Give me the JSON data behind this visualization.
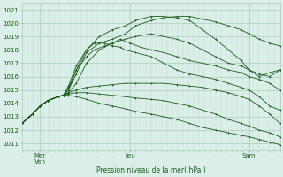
{
  "xlabel": "Pression niveau de la mer( hPa )",
  "ylim": [
    1010.5,
    1021.5
  ],
  "yticks": [
    1011,
    1012,
    1013,
    1014,
    1015,
    1016,
    1017,
    1018,
    1019,
    1020,
    1021
  ],
  "bg_color": "#d9efe8",
  "grid_major_color": "#aaccbb",
  "grid_minor_color": "#c4ddd5",
  "line_color": "#1a5c1a",
  "xlim": [
    0,
    1
  ],
  "xtick_positions": [
    0.07,
    0.42,
    0.88
  ],
  "xtick_labels": [
    "Mer\nVen",
    "Jeu",
    "Sam"
  ],
  "lines": [
    {
      "x": [
        0.0,
        0.04,
        0.07,
        0.1,
        0.14,
        0.16,
        0.18,
        0.21,
        0.25,
        0.3,
        0.35,
        0.4,
        0.44,
        0.5,
        0.55,
        0.6,
        0.65,
        0.7,
        0.75,
        0.8,
        0.85,
        0.88,
        0.92,
        0.96,
        1.0
      ],
      "y": [
        1012.5,
        1013.2,
        1013.8,
        1014.2,
        1014.5,
        1014.6,
        1015.0,
        1016.2,
        1017.8,
        1018.5,
        1018.8,
        1019.2,
        1019.8,
        1020.2,
        1020.4,
        1020.5,
        1020.5,
        1020.3,
        1020.1,
        1019.8,
        1019.5,
        1019.2,
        1018.8,
        1018.5,
        1018.3
      ]
    },
    {
      "x": [
        0.0,
        0.04,
        0.07,
        0.1,
        0.14,
        0.16,
        0.18,
        0.21,
        0.25,
        0.3,
        0.35,
        0.4,
        0.44,
        0.5,
        0.55,
        0.6,
        0.65,
        0.7,
        0.75,
        0.8,
        0.85,
        0.88,
        0.92,
        0.96,
        1.0
      ],
      "y": [
        1012.5,
        1013.2,
        1013.8,
        1014.2,
        1014.5,
        1014.6,
        1015.0,
        1016.5,
        1018.0,
        1019.0,
        1019.5,
        1019.8,
        1020.2,
        1020.5,
        1020.5,
        1020.4,
        1020.2,
        1019.5,
        1018.8,
        1018.0,
        1017.2,
        1016.5,
        1016.0,
        1016.3,
        1016.5
      ]
    },
    {
      "x": [
        0.0,
        0.04,
        0.07,
        0.1,
        0.14,
        0.16,
        0.18,
        0.21,
        0.25,
        0.3,
        0.35,
        0.4,
        0.44,
        0.5,
        0.55,
        0.6,
        0.65,
        0.7,
        0.75,
        0.8,
        0.85,
        0.88,
        0.92,
        0.96,
        1.0
      ],
      "y": [
        1012.5,
        1013.2,
        1013.8,
        1014.2,
        1014.5,
        1014.6,
        1014.8,
        1015.5,
        1017.0,
        1018.0,
        1018.5,
        1018.8,
        1019.0,
        1019.2,
        1019.0,
        1018.8,
        1018.5,
        1018.0,
        1017.5,
        1017.0,
        1016.8,
        1016.5,
        1016.2,
        1016.0,
        1016.5
      ]
    },
    {
      "x": [
        0.0,
        0.04,
        0.07,
        0.1,
        0.14,
        0.16,
        0.18,
        0.21,
        0.25,
        0.28,
        0.32,
        0.35,
        0.38,
        0.42,
        0.46,
        0.5,
        0.55,
        0.6,
        0.65,
        0.7,
        0.75,
        0.8,
        0.85,
        0.88,
        0.92,
        0.96,
        1.0
      ],
      "y": [
        1012.5,
        1013.2,
        1013.8,
        1014.2,
        1014.5,
        1014.6,
        1015.2,
        1016.5,
        1017.5,
        1018.0,
        1018.3,
        1018.5,
        1018.8,
        1018.5,
        1018.2,
        1018.0,
        1017.8,
        1017.5,
        1017.2,
        1017.0,
        1016.8,
        1016.5,
        1016.3,
        1016.0,
        1015.8,
        1015.5,
        1015.0
      ]
    },
    {
      "x": [
        0.0,
        0.04,
        0.07,
        0.1,
        0.14,
        0.16,
        0.18,
        0.21,
        0.25,
        0.28,
        0.32,
        0.35,
        0.38,
        0.4,
        0.44,
        0.5,
        0.55,
        0.6,
        0.65,
        0.7,
        0.75,
        0.8,
        0.85,
        0.88,
        0.92,
        0.96,
        1.0
      ],
      "y": [
        1012.5,
        1013.2,
        1013.8,
        1014.2,
        1014.5,
        1014.6,
        1015.3,
        1016.8,
        1018.0,
        1018.5,
        1018.5,
        1018.3,
        1018.2,
        1018.0,
        1017.8,
        1017.5,
        1017.0,
        1016.5,
        1016.2,
        1016.0,
        1015.8,
        1015.5,
        1015.2,
        1015.0,
        1014.5,
        1013.8,
        1013.5
      ]
    },
    {
      "x": [
        0.0,
        0.04,
        0.07,
        0.1,
        0.14,
        0.16,
        0.18,
        0.21,
        0.25,
        0.3,
        0.35,
        0.4,
        0.44,
        0.5,
        0.55,
        0.6,
        0.65,
        0.7,
        0.75,
        0.8,
        0.85,
        0.88,
        0.92,
        0.96,
        1.0
      ],
      "y": [
        1012.5,
        1013.2,
        1013.8,
        1014.2,
        1014.5,
        1014.6,
        1014.8,
        1015.0,
        1015.2,
        1015.3,
        1015.4,
        1015.5,
        1015.5,
        1015.5,
        1015.5,
        1015.4,
        1015.3,
        1015.2,
        1015.0,
        1014.8,
        1014.5,
        1014.3,
        1013.8,
        1013.2,
        1012.5
      ]
    },
    {
      "x": [
        0.0,
        0.04,
        0.07,
        0.1,
        0.14,
        0.16,
        0.18,
        0.21,
        0.25,
        0.3,
        0.35,
        0.4,
        0.44,
        0.5,
        0.55,
        0.6,
        0.65,
        0.7,
        0.75,
        0.8,
        0.85,
        0.88,
        0.92,
        0.96,
        1.0
      ],
      "y": [
        1012.5,
        1013.2,
        1013.8,
        1014.2,
        1014.5,
        1014.6,
        1014.7,
        1014.8,
        1014.8,
        1014.7,
        1014.6,
        1014.5,
        1014.4,
        1014.3,
        1014.2,
        1014.0,
        1013.8,
        1013.5,
        1013.2,
        1012.8,
        1012.5,
        1012.3,
        1012.0,
        1011.8,
        1011.5
      ]
    },
    {
      "x": [
        0.0,
        0.04,
        0.07,
        0.1,
        0.14,
        0.16,
        0.18,
        0.21,
        0.25,
        0.3,
        0.35,
        0.4,
        0.44,
        0.5,
        0.55,
        0.6,
        0.65,
        0.7,
        0.75,
        0.8,
        0.85,
        0.88,
        0.92,
        0.96,
        1.0
      ],
      "y": [
        1012.5,
        1013.2,
        1013.8,
        1014.2,
        1014.5,
        1014.6,
        1014.6,
        1014.5,
        1014.3,
        1014.0,
        1013.8,
        1013.6,
        1013.4,
        1013.2,
        1013.0,
        1012.8,
        1012.5,
        1012.2,
        1012.0,
        1011.8,
        1011.6,
        1011.5,
        1011.3,
        1011.1,
        1010.9
      ]
    }
  ]
}
